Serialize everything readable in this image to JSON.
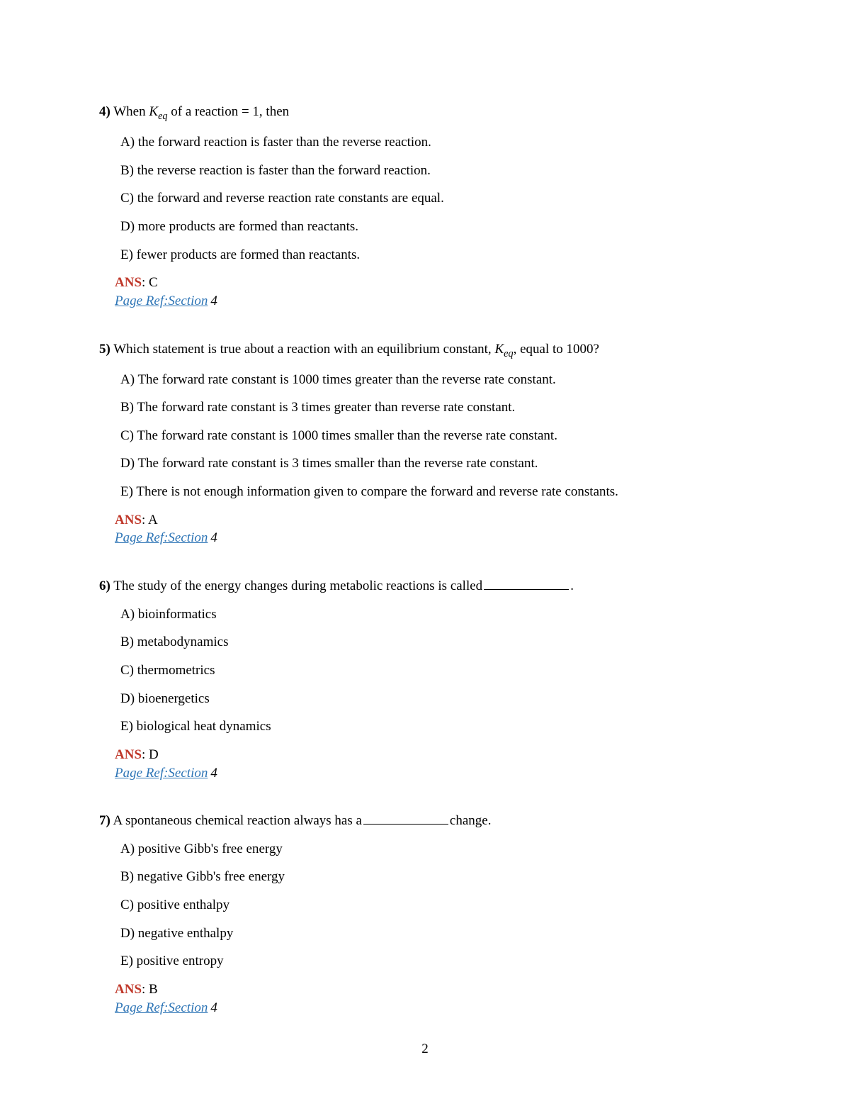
{
  "page_number": "2",
  "questions": [
    {
      "number": "4)",
      "stem_pre": "When ",
      "stem_k": "K",
      "stem_sub": "eq",
      "stem_post": " of a reaction = 1, then",
      "options": [
        "A) the forward reaction is faster than the reverse reaction.",
        "B) the reverse reaction is faster than the forward reaction.",
        "C) the forward and reverse reaction rate constants are equal.",
        "D) more products are formed than reactants.",
        "E) fewer products are formed than reactants."
      ],
      "ans_label": "ANS",
      "ans_letter": ": C",
      "page_ref": "Page Ref:Section",
      "page_ref_num": "4"
    },
    {
      "number": "5)",
      "stem_pre": "Which statement is true about a reaction with an equilibrium constant, ",
      "stem_k": "K",
      "stem_sub": "eq",
      "stem_post": ", equal to 1000?",
      "options": [
        "A) The forward rate constant is 1000 times greater than the reverse rate constant.",
        "B) The forward rate constant is 3 times greater than reverse rate constant.",
        "C) The forward rate constant is 1000 times smaller than the reverse rate constant.",
        "D) The forward rate constant is 3 times smaller than the reverse rate constant.",
        "E) There is not enough information given to compare the forward and reverse rate constants."
      ],
      "ans_label": "ANS",
      "ans_letter": ": A",
      "page_ref": "Page Ref:Section",
      "page_ref_num": "4"
    },
    {
      "number": "6)",
      "stem_plain": "The study of the energy changes during metabolic reactions is called",
      "stem_tail": ".",
      "has_blank": true,
      "options": [
        "A) bioinformatics",
        "B) metabodynamics",
        "C) thermometrics",
        "D) bioenergetics",
        "E) biological heat dynamics"
      ],
      "ans_label": "ANS",
      "ans_letter": ": D",
      "page_ref": "Page Ref:Section",
      "page_ref_num": "4"
    },
    {
      "number": "7)",
      "stem_plain": "A spontaneous chemical reaction always has a",
      "stem_tail": "change.",
      "has_blank": true,
      "options": [
        "A) positive Gibb's free energy",
        "B) negative Gibb's free energy",
        "C) positive enthalpy",
        "D) negative enthalpy",
        "E) positive entropy"
      ],
      "ans_label": "ANS",
      "ans_letter": ": B",
      "page_ref": "Page Ref:Section",
      "page_ref_num": "4"
    }
  ]
}
